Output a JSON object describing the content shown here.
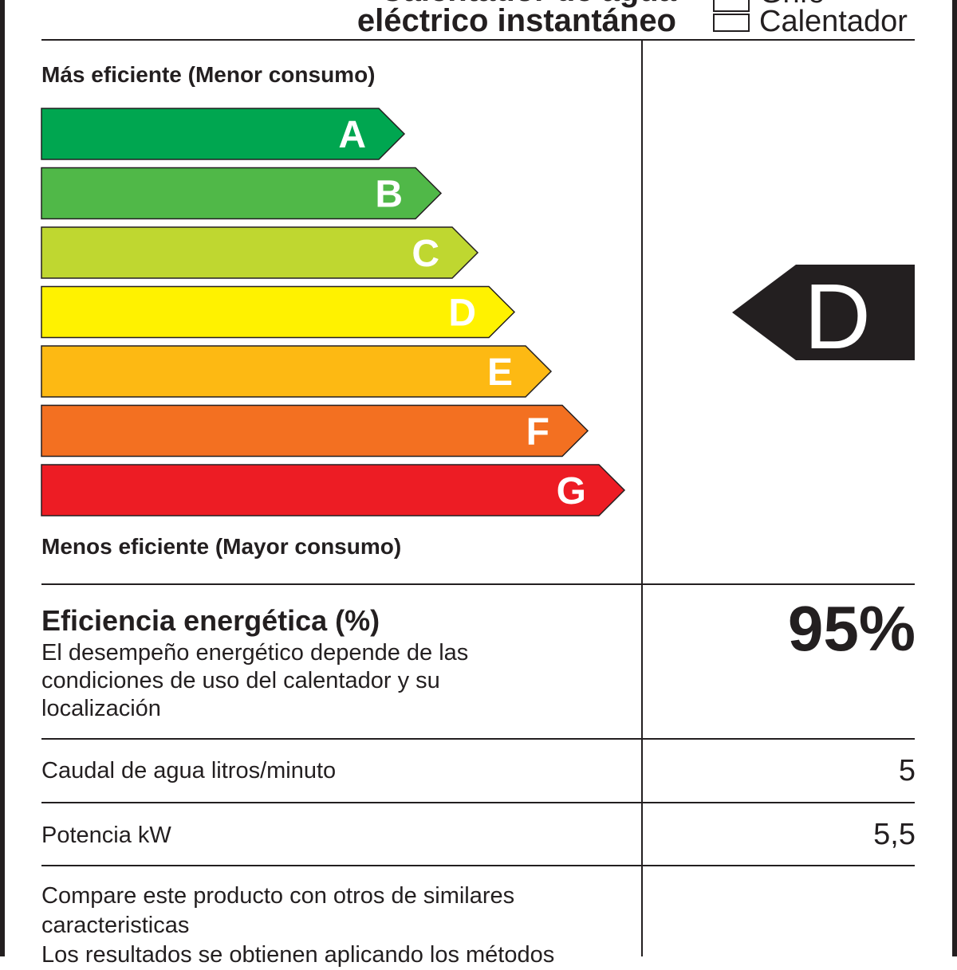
{
  "header": {
    "title_line1": "Calentador de agua",
    "title_line2": "eléctrico instantáneo",
    "checkbox_1_label": "Grifo",
    "checkbox_2_label": "Calentador"
  },
  "scale": {
    "top_label": "Más eficiente (Menor consumo)",
    "bottom_label": "Menos eficiente (Mayor consumo)",
    "classes": [
      {
        "letter": "A",
        "color": "#00a650"
      },
      {
        "letter": "B",
        "color": "#50b848"
      },
      {
        "letter": "C",
        "color": "#bfd730"
      },
      {
        "letter": "D",
        "color": "#fff200"
      },
      {
        "letter": "E",
        "color": "#fdb913"
      },
      {
        "letter": "F",
        "color": "#f37021"
      },
      {
        "letter": "G",
        "color": "#ed1c24"
      }
    ]
  },
  "rating": {
    "letter": "D",
    "color": "#231f20"
  },
  "efficiency": {
    "title": "Eficiencia energética (%)",
    "description": "El desempeño energético depende de las condiciones de uso del calentador y su localización",
    "value": "95%"
  },
  "specs": {
    "flow_label": "Caudal de agua litros/minuto",
    "flow_value": "5",
    "power_label": "Potencia kW",
    "power_value": "5,5"
  },
  "footer": {
    "compare_text": "Compare este producto con otros de similares caracteristicas",
    "cut_text": "Los resultados se obtienen aplicando los métodos"
  }
}
